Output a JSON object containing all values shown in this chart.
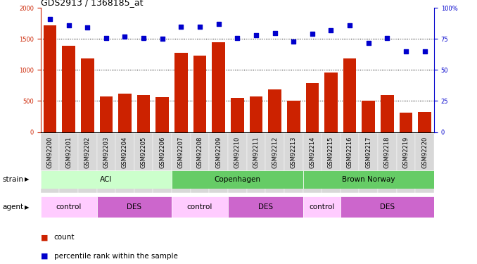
{
  "title": "GDS2913 / 1368185_at",
  "samples": [
    "GSM92200",
    "GSM92201",
    "GSM92202",
    "GSM92203",
    "GSM92204",
    "GSM92205",
    "GSM92206",
    "GSM92207",
    "GSM92208",
    "GSM92209",
    "GSM92210",
    "GSM92211",
    "GSM92212",
    "GSM92213",
    "GSM92214",
    "GSM92215",
    "GSM92216",
    "GSM92217",
    "GSM92218",
    "GSM92219",
    "GSM92220"
  ],
  "counts": [
    1720,
    1390,
    1190,
    570,
    620,
    600,
    560,
    1280,
    1230,
    1450,
    550,
    570,
    690,
    510,
    790,
    960,
    1190,
    500,
    600,
    310,
    325
  ],
  "percentiles": [
    91,
    86,
    84,
    76,
    77,
    76,
    75,
    85,
    85,
    87,
    76,
    78,
    80,
    73,
    79,
    82,
    86,
    72,
    76,
    65,
    65
  ],
  "bar_color": "#cc2200",
  "dot_color": "#0000cc",
  "ylim_left": [
    0,
    2000
  ],
  "ylim_right": [
    0,
    100
  ],
  "yticks_left": [
    0,
    500,
    1000,
    1500,
    2000
  ],
  "yticks_right": [
    0,
    25,
    50,
    75,
    100
  ],
  "grid_values": [
    500,
    1000,
    1500
  ],
  "strain_groups": [
    {
      "label": "ACI",
      "start": 0,
      "end": 6,
      "color": "#ccffcc"
    },
    {
      "label": "Copenhagen",
      "start": 7,
      "end": 13,
      "color": "#66cc66"
    },
    {
      "label": "Brown Norway",
      "start": 14,
      "end": 20,
      "color": "#66cc66"
    }
  ],
  "agent_groups": [
    {
      "label": "control",
      "start": 0,
      "end": 2,
      "color": "#ffccff"
    },
    {
      "label": "DES",
      "start": 3,
      "end": 6,
      "color": "#cc66cc"
    },
    {
      "label": "control",
      "start": 7,
      "end": 9,
      "color": "#ffccff"
    },
    {
      "label": "DES",
      "start": 10,
      "end": 13,
      "color": "#cc66cc"
    },
    {
      "label": "control",
      "start": 14,
      "end": 15,
      "color": "#ffccff"
    },
    {
      "label": "DES",
      "start": 16,
      "end": 20,
      "color": "#cc66cc"
    }
  ],
  "strain_row_label": "strain",
  "agent_row_label": "agent",
  "legend_count_label": "count",
  "legend_pct_label": "percentile rank within the sample",
  "background_color": "#ffffff",
  "title_fontsize": 9,
  "tick_fontsize": 6,
  "label_fontsize": 7.5
}
